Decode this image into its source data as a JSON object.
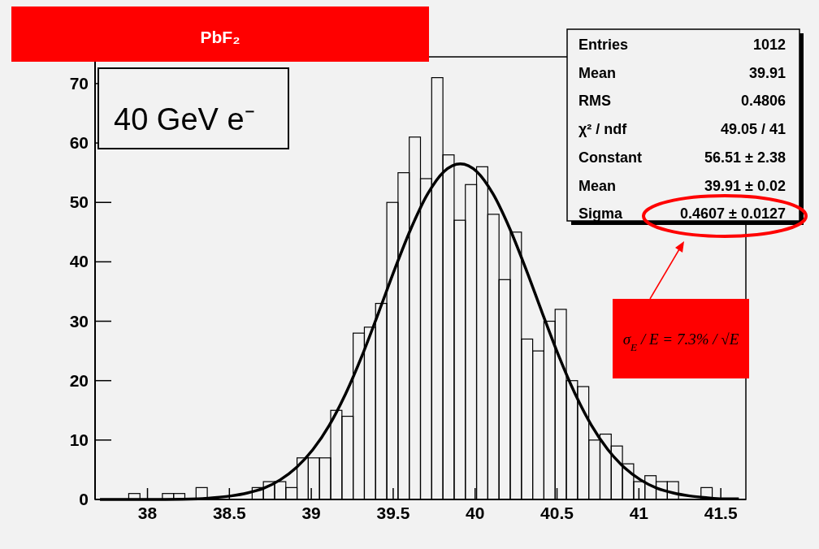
{
  "chart_data": {
    "type": "histogram",
    "title": "PbF₂",
    "annotations": [
      "40 GeV e⁻",
      "Entries",
      "1012",
      "Mean",
      "39.91",
      "RMS",
      "0.4806",
      "χ² / ndf",
      "49.05 / 41",
      "Constant",
      "56.51 ± 2.38",
      "Mean",
      "39.91 ± 0.02",
      "Sigma",
      "0.4607 ± 0.0127",
      "σ$_{E}$ / E = 7.3% / √E"
    ],
    "bins": [
      37.68,
      37.7485,
      37.817,
      37.8855,
      37.954,
      38.0225,
      38.091,
      38.1595,
      38.228,
      38.2965,
      38.365,
      38.4335,
      38.502,
      38.5705,
      38.639,
      38.7075,
      38.776,
      38.8445,
      38.913,
      38.9815,
      39.05,
      39.1185,
      39.187,
      39.2555,
      39.324,
      39.3925,
      39.461,
      39.5295,
      39.598,
      39.6665,
      39.735,
      39.8035,
      39.872,
      39.9405,
      40.009,
      40.0775,
      40.146,
      40.2145,
      40.283,
      40.3515,
      40.42,
      40.4885,
      40.557,
      40.6255,
      40.694,
      40.7625,
      40.831,
      40.8995,
      40.968,
      41.0365,
      41.105,
      41.1735,
      41.242,
      41.3105,
      41.379,
      41.4475,
      41.516,
      41.5845,
      41.653
    ],
    "series": [
      {
        "color": "#000000",
        "values": [
          0,
          0,
          0,
          1,
          0,
          0,
          1,
          1,
          0,
          2,
          0,
          0,
          0,
          0,
          2,
          3,
          3,
          2,
          7,
          7,
          7,
          15,
          14,
          28,
          29,
          33,
          50,
          55,
          61,
          54,
          71,
          58,
          47,
          53,
          56,
          48,
          37,
          45,
          27,
          25,
          30,
          32,
          20,
          19,
          10,
          11,
          9,
          6,
          3,
          4,
          3,
          3,
          0,
          0,
          2,
          0,
          0,
          0
        ]
      },
      {
        "type": "line",
        "color": "#000000",
        "x": [
          37.71,
          37.91,
          38.11,
          38.31,
          38.41,
          38.51,
          38.61,
          38.71,
          38.81,
          38.91,
          39.01,
          39.11,
          39.21,
          39.31,
          39.41,
          39.51,
          39.61,
          39.71,
          39.81,
          39.91,
          40.01,
          40.11,
          40.21,
          40.31,
          40.41,
          40.51,
          40.61,
          40.71,
          40.81,
          40.91,
          41.01,
          41.11,
          41.21,
          41.31,
          41.41,
          41.51,
          41.61
        ],
        "values": [
          0,
          0,
          0,
          0.1,
          0.3,
          0.6,
          1.1,
          1.9,
          3.3,
          5.4,
          8.4,
          12.5,
          17.8,
          24.2,
          31.4,
          38.8,
          45.7,
          51.4,
          55.2,
          56.5,
          55.2,
          51.4,
          45.7,
          38.8,
          31.4,
          24.2,
          17.8,
          12.5,
          8.4,
          5.4,
          3.3,
          1.9,
          1.1,
          0.6,
          0.3,
          0.1,
          0.1
        ]
      }
    ],
    "xlim": [
      37.68,
      41.653
    ],
    "xticks": [
      38,
      38.5,
      39,
      39.5,
      40,
      40.5,
      41,
      41.5
    ],
    "ylim": [
      0,
      74.5
    ],
    "yticks": [
      0,
      10,
      20,
      30,
      40,
      50,
      60,
      70
    ],
    "grid": false
  }
}
